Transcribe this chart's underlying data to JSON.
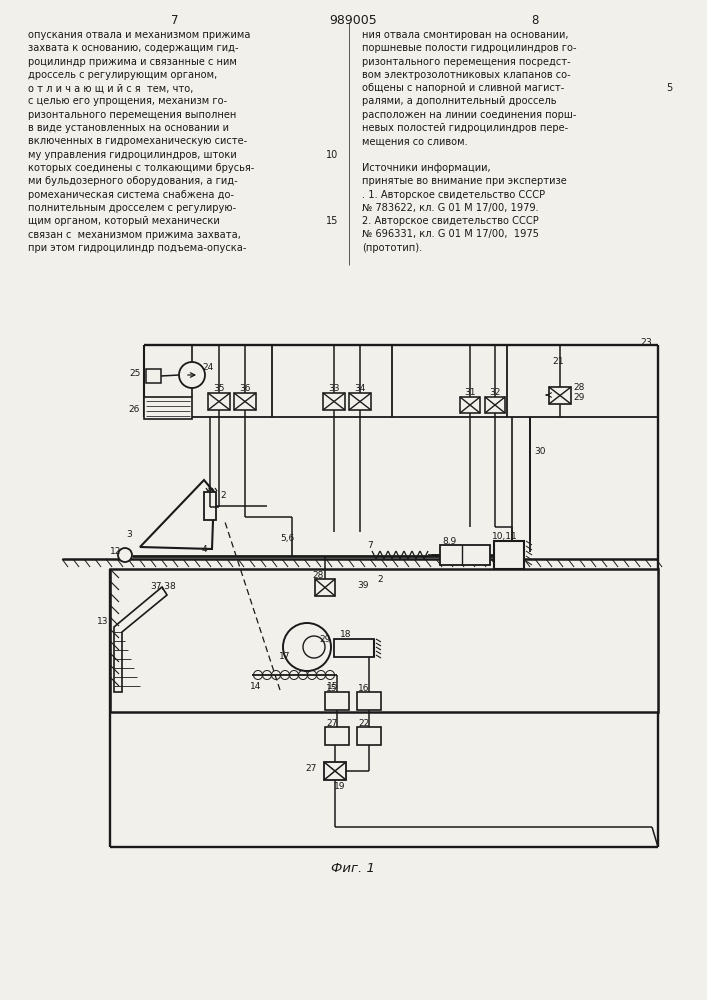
{
  "bg_color": "#f2f0eb",
  "line_color": "#1a1a1a",
  "text_color": "#1a1a1a",
  "fig_caption": "Фиг. 1",
  "col1_lines": [
    "опускания отвала и механизмом прижима",
    "захвата к основанию, содержащим гид-",
    "роцилиндр прижима и связанные с ним",
    "дроссель с регулирующим органом,",
    "о т л и ч а ю щ и й с я  тем, что,",
    "с целью его упрощения, механизм го-",
    "ризонтального перемещения выполнен",
    "в виде установленных на основании и",
    "включенных в гидромеханическую систе-",
    "му управления гидроцилиндров, штоки",
    "которых соединены с толкающими брусья-",
    "ми бульдозерного оборудования, а гид-",
    "ромеханическая система снабжена до-",
    "полнительным дросселем с регулирую-",
    "щим органом, который механически",
    "связан с  механизмом прижима захвата,",
    "при этом гидроцилиндр подъема-опуска-"
  ],
  "col1_linenum": {
    "9": "10",
    "14": "15"
  },
  "col2_lines": [
    "ния отвала смонтирован на основании,",
    "поршневые полости гидроцилиндров го-",
    "ризонтального перемещения посредст-",
    "вом электрозолотниковых клапанов со-",
    "общены с напорной и сливной магист-",
    "ралями, а дополнительный дроссель",
    "расположен на линии соединения порш-",
    "невых полостей гидроцилиндров пере-",
    "мещения со сливом.",
    "",
    "Источники информации,",
    "принятые во внимание при экспертизе",
    ". 1. Авторское свидетельство СССР",
    "№ 783622, кл. G 01 M 17/00, 1979.",
    "2. Авторское свидетельство СССР",
    "№ 696331, кл. G 01 M 17/00,  1975",
    "(прототип)."
  ],
  "col2_linenum": {
    "4": "5"
  }
}
